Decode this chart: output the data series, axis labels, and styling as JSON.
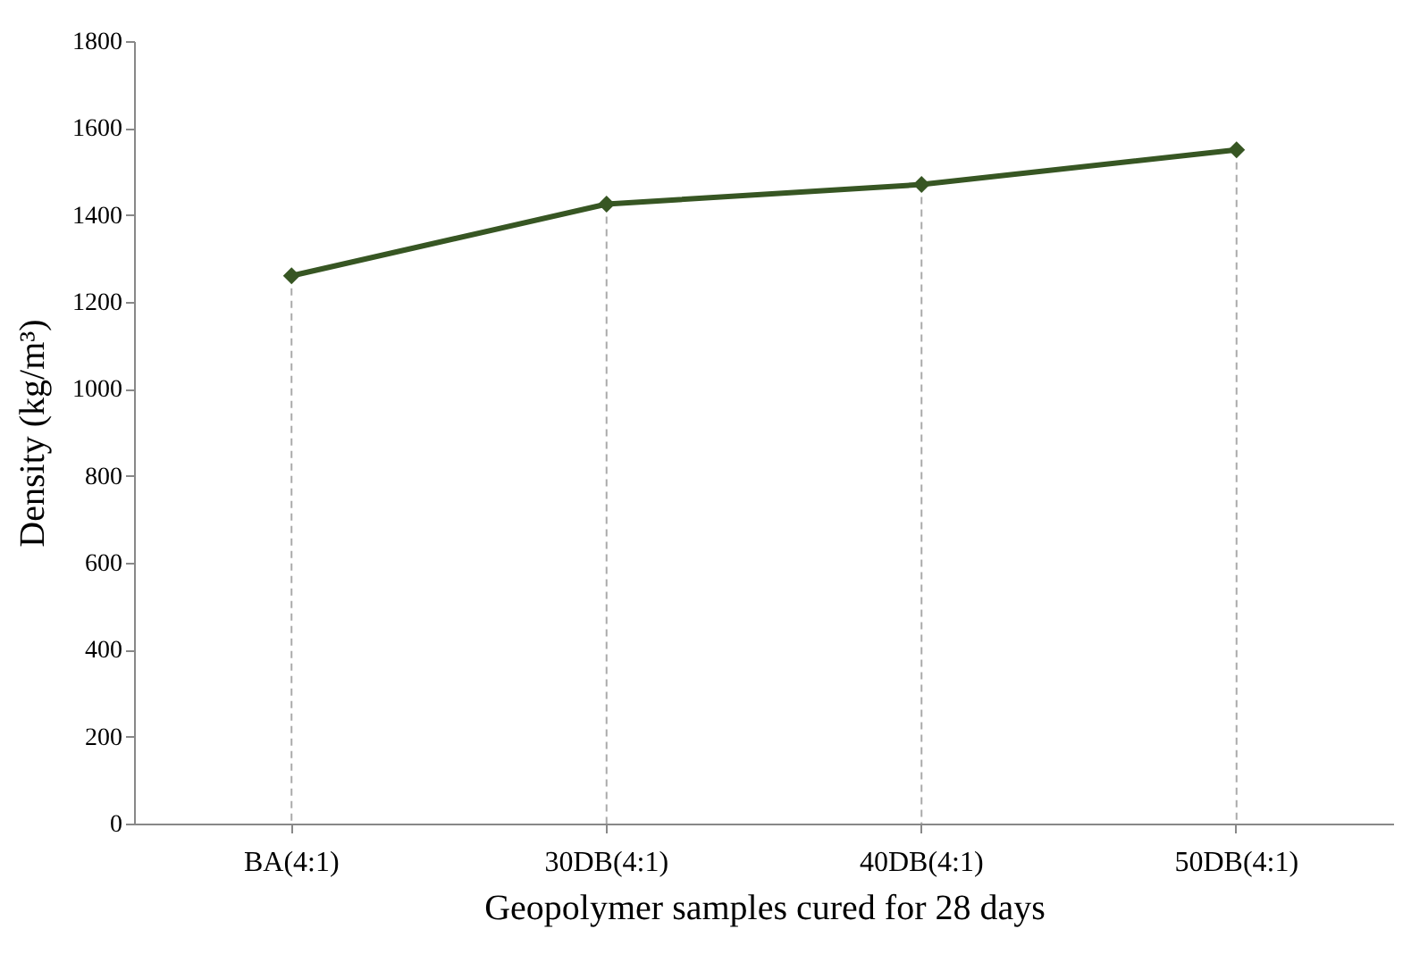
{
  "chart_data": {
    "type": "line",
    "xlabel": "Geopolymer samples cured for 28 days",
    "ylabel": "Density (kg/m³)",
    "categories": [
      "BA(4:1)",
      "30DB(4:1)",
      "40DB(4:1)",
      "50DB(4:1)"
    ],
    "series": [
      {
        "color": "#375623",
        "values": [
          1260,
          1425,
          1470,
          1550
        ]
      }
    ],
    "ylim": [
      0,
      1800
    ],
    "yticks": [
      0,
      200,
      400,
      600,
      800,
      1000,
      1200,
      1400,
      1600,
      1800
    ],
    "grid": "x",
    "marker": "diamond",
    "line_style": "solid",
    "legend": false
  }
}
